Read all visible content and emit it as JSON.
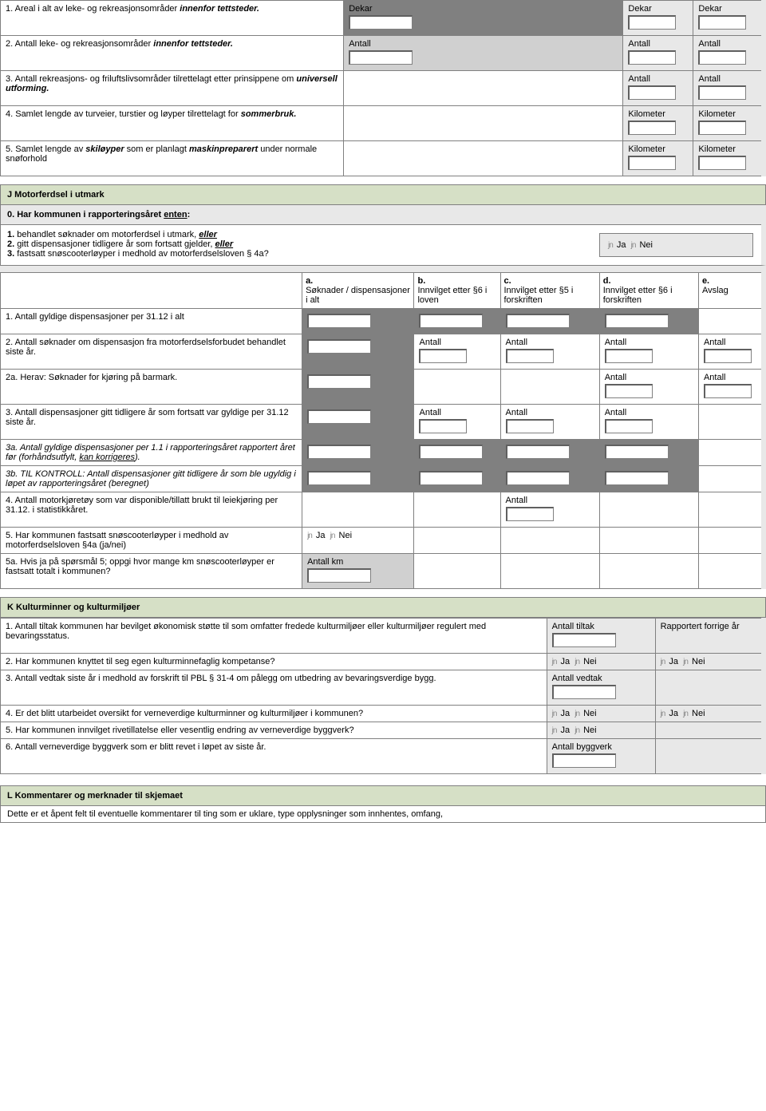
{
  "top_table": {
    "rows": [
      {
        "text": "1. Areal i alt av leke- og rekreasjonsområder <span class='bold italic'>innenfor tettsteder.</span>",
        "mid_label": "Dekar",
        "mid_dark": true,
        "r1_label": "Dekar",
        "r2_label": "Dekar"
      },
      {
        "text": "2. Antall leke- og rekreasjonsområder <span class='bold italic'>innenfor tettsteder.</span>",
        "mid_label": "Antall",
        "mid_dark": false,
        "mid_light": true,
        "r1_label": "Antall",
        "r2_label": "Antall"
      },
      {
        "text": "3. Antall rekreasjons- og friluftslivsområder tilrettelagt etter prinsippene om <span class='bold italic'>universell utforming.</span>",
        "mid_label": "",
        "mid_none": true,
        "r1_label": "Antall",
        "r2_label": "Antall"
      },
      {
        "text": "4. Samlet lengde av turveier, turstier og løyper tilrettelagt for <span class='bold italic'>sommerbruk.</span>",
        "mid_label": "",
        "mid_none": true,
        "r1_label": "Kilometer",
        "r2_label": "Kilometer"
      },
      {
        "text": "5. Samlet lengde av <span class='bold italic'>skiløyper</span> som er planlagt <span class='bold italic'>maskinpreparert</span> under normale snøforhold",
        "mid_label": "",
        "mid_none": true,
        "r1_label": "Kilometer",
        "r2_label": "Kilometer"
      }
    ]
  },
  "section_j": {
    "title": "J Motorferdsel i utmark",
    "q0": "0. Har kommunen i rapporteringsåret <span class='underline'>enten</span>:",
    "q0_lines": [
      "<span class='bold'>1.</span> behandlet søknader om motorferdsel i utmark, <span class='bold italic underline'>eller</span>",
      "<span class='bold'>2.</span> gitt dispensasjoner tidligere år som fortsatt gjelder, <span class='bold italic underline'>eller</span>",
      "<span class='bold'>3.</span> fastsatt snøscooterløyper i medhold av motorferdselsloven § 4a?"
    ],
    "ja": "Ja",
    "nei": "Nei",
    "headers": {
      "a": "<span class='bold'>a.</span><br>Søknader / dispensasjoner i alt",
      "b": "<span class='bold'>b.</span><br>Innvilget etter §6 i loven",
      "c": "<span class='bold'>c.</span><br>Innvilget etter §5 i forskriften",
      "d": "<span class='bold'>d.</span><br>Innvilget etter §6 i forskriften",
      "e": "<span class='bold'>e.</span><br>Avslag"
    },
    "rows": [
      {
        "text": "1. Antall gyldige dispensasjoner per 31.12 i alt",
        "cells": [
          "dark",
          "dark",
          "dark",
          "dark",
          "blank"
        ]
      },
      {
        "text": "2. Antall søknader om dispensasjon fra motorferdselsforbudet behandlet siste år.",
        "cells": [
          "dark",
          "label:Antall",
          "label:Antall",
          "label:Antall",
          "label:Antall"
        ]
      },
      {
        "text": "2a. Herav: Søknader for kjøring på barmark.",
        "cells": [
          "dark",
          "blank",
          "blank",
          "label:Antall",
          "label:Antall"
        ]
      },
      {
        "text": "3. Antall dispensasjoner gitt tidligere år som fortsatt var gyldige per 31.12 siste år.",
        "cells": [
          "dark",
          "label:Antall",
          "label:Antall",
          "label:Antall",
          "blank"
        ]
      },
      {
        "text": "<span class='italic'>3a. Antall gyldige dispensasjoner per 1.1 i rapporteringsåret rapportert året før (forhåndsutfylt, <span class='underline'>kan korrigeres</span>).</span>",
        "cells": [
          "dark",
          "dark",
          "dark",
          "dark",
          "blank"
        ]
      },
      {
        "text": "<span class='italic'>3b. TIL KONTROLL: Antall dispensasjoner gitt tidligere år som ble ugyldig i løpet av rapporteringsåret (beregnet)</span>",
        "cells": [
          "dark",
          "dark",
          "dark",
          "dark",
          "blank"
        ]
      },
      {
        "text": "4. Antall motorkjøretøy som var disponible/tillatt brukt til leiekjøring per 31.12. i statistikkåret.",
        "cells": [
          "blank",
          "blank",
          "label:Antall",
          "blank",
          "blank"
        ]
      },
      {
        "text": "5. Har kommunen fastsatt snøscooterløyper i medhold av motorferdselsloven §4a (ja/nei)",
        "cells": [
          "radio",
          "blank",
          "blank",
          "blank",
          "blank"
        ]
      },
      {
        "text": "5a. Hvis ja på spørsmål 5; oppgi hvor mange km snøscooterløyper er fastsatt totalt i kommunen?",
        "cells": [
          "lightlabel:Antall km",
          "blank",
          "blank",
          "blank",
          "blank"
        ]
      }
    ]
  },
  "section_k": {
    "title": "K Kulturminner og kulturmiljøer",
    "rows": [
      {
        "text": "1. Antall tiltak kommunen har bevilget økonomisk støtte til som omfatter fredede kulturmiljøer eller kulturmiljøer regulert med bevaringsstatus.",
        "c1": "labelbox:Antall tiltak",
        "c2": "text:Rapportert forrige år"
      },
      {
        "text": "2. Har kommunen knyttet til seg egen kulturminnefaglig kompetanse?",
        "c1": "radio",
        "c2": "radio"
      },
      {
        "text": "3. Antall vedtak siste år i medhold av forskrift til PBL § 31-4 om pålegg om utbedring av bevaringsverdige bygg.",
        "c1": "labelbox:Antall vedtak",
        "c2": "blank"
      },
      {
        "text": "4. Er det blitt utarbeidet oversikt for verneverdige kulturminner og kulturmiljøer i kommunen?",
        "c1": "radio",
        "c2": "radio"
      },
      {
        "text": "5. Har kommunen innvilget rivetillatelse eller vesentlig endring av verneverdige byggverk?",
        "c1": "radio",
        "c2": "blank"
      },
      {
        "text": "6. Antall verneverdige byggverk som er blitt revet i løpet av siste år.",
        "c1": "labelbox:Antall byggverk",
        "c2": "blank"
      }
    ]
  },
  "section_l": {
    "title": "L Kommentarer og merknader til skjemaet",
    "text": "Dette er et åpent felt til eventuelle kommentarer til ting som er uklare, type opplysninger som innhentes, omfang,"
  },
  "labels": {
    "antall": "Antall",
    "ja": "Ja",
    "nei": "Nei"
  }
}
